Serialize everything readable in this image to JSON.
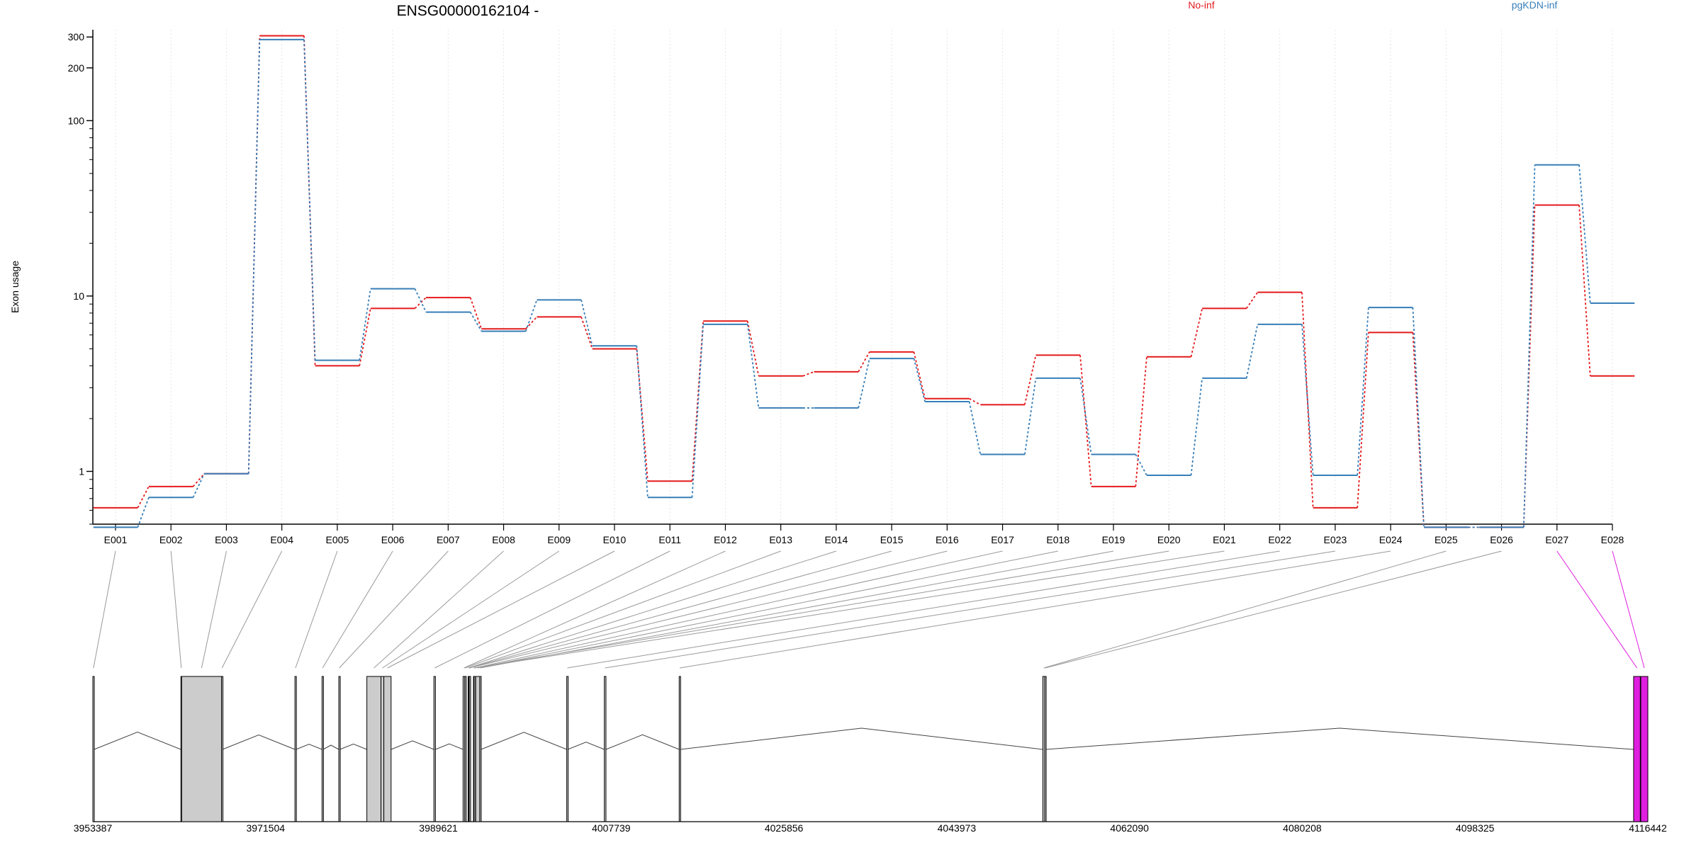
{
  "chart_data": {
    "type": "line",
    "title": "ENSG00000162104 -",
    "ylabel": "Exon usage",
    "xlabel": "",
    "yscale": "log",
    "ylim": [
      0.5,
      330
    ],
    "y_ticks": [
      1,
      10,
      100,
      200,
      300
    ],
    "grid": "vertical dotted lines at each exon",
    "legend_placement": "top",
    "categories": [
      "E001",
      "E002",
      "E003",
      "E004",
      "E005",
      "E006",
      "E007",
      "E008",
      "E009",
      "E010",
      "E011",
      "E012",
      "E013",
      "E014",
      "E015",
      "E016",
      "E017",
      "E018",
      "E019",
      "E020",
      "E021",
      "E022",
      "E023",
      "E024",
      "E025",
      "E026",
      "E027",
      "E028"
    ],
    "series": [
      {
        "name": "No-inf",
        "color": "#e41a1c",
        "values": [
          0.62,
          0.82,
          0.97,
          305,
          4.0,
          8.5,
          9.8,
          6.5,
          7.6,
          5.0,
          0.88,
          7.2,
          3.5,
          3.7,
          4.8,
          2.6,
          2.4,
          4.6,
          0.82,
          4.5,
          8.5,
          10.5,
          0.62,
          6.2,
          0.48,
          0.48,
          33,
          3.5
        ]
      },
      {
        "name": "pgKDN-inf",
        "color": "#377eb8",
        "values": [
          0.48,
          0.71,
          0.97,
          290,
          4.3,
          11,
          8.1,
          6.3,
          9.5,
          5.2,
          0.71,
          6.9,
          2.3,
          2.3,
          4.4,
          2.5,
          1.25,
          3.4,
          1.25,
          0.95,
          3.4,
          6.9,
          0.95,
          8.6,
          0.48,
          0.48,
          56,
          9.1
        ]
      }
    ],
    "gene_model": {
      "coordinate_ticks": [
        "3953387",
        "3971504",
        "3989621",
        "4007739",
        "4025856",
        "4043973",
        "4062090",
        "4080208",
        "4098325",
        "4116442"
      ],
      "genomic_range": [
        3953387,
        4116442
      ],
      "exons": [
        {
          "id": "E001",
          "start": 3953387,
          "end": 3953520
        },
        {
          "id": "E002",
          "start": 3962620,
          "end": 3962700
        },
        {
          "id": "E003",
          "start": 3962700,
          "end": 3966880
        },
        {
          "id": "E004",
          "start": 3966880,
          "end": 3966980
        },
        {
          "id": "E005",
          "start": 3974580,
          "end": 3974690
        },
        {
          "id": "E006",
          "start": 3977420,
          "end": 3977530
        },
        {
          "id": "E007",
          "start": 3979180,
          "end": 3979290
        },
        {
          "id": "E008",
          "start": 3982120,
          "end": 3983600
        },
        {
          "id": "E009",
          "start": 3983600,
          "end": 3983900
        },
        {
          "id": "E010",
          "start": 3983900,
          "end": 3984660
        },
        {
          "id": "E011",
          "start": 3989150,
          "end": 3989310
        },
        {
          "id": "E012",
          "start": 3992210,
          "end": 3992390
        },
        {
          "id": "E013",
          "start": 3992390,
          "end": 3992480
        },
        {
          "id": "E014",
          "start": 3992740,
          "end": 3992800
        },
        {
          "id": "E015",
          "start": 3992800,
          "end": 3992850
        },
        {
          "id": "E016",
          "start": 3992850,
          "end": 3992900
        },
        {
          "id": "E017",
          "start": 3993430,
          "end": 3993470
        },
        {
          "id": "E018",
          "start": 3993530,
          "end": 3993960
        },
        {
          "id": "E019",
          "start": 3993960,
          "end": 3994090
        },
        {
          "id": "E020",
          "start": 3993300,
          "end": 3993360
        },
        {
          "id": "E021",
          "start": 3993360,
          "end": 3993420
        },
        {
          "id": "E022",
          "start": 4003080,
          "end": 4003190
        },
        {
          "id": "E023",
          "start": 4007020,
          "end": 4007190
        },
        {
          "id": "E024",
          "start": 4014870,
          "end": 4014990
        },
        {
          "id": "E025",
          "start": 4053000,
          "end": 4053200
        },
        {
          "id": "E026",
          "start": 4053200,
          "end": 4053320
        },
        {
          "id": "E027",
          "start": 4114950,
          "end": 4115650
        },
        {
          "id": "E028",
          "start": 4115700,
          "end": 4116442
        }
      ],
      "highlighted_exons": [
        "E027",
        "E028"
      ],
      "highlight_color": "#e01ee0",
      "exon_color": "#cccccc"
    }
  }
}
